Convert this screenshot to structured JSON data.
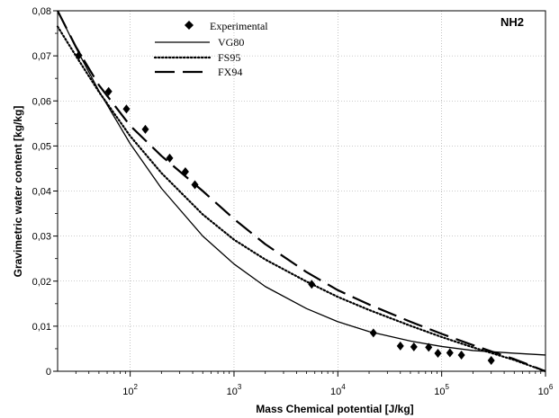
{
  "chart_data": {
    "type": "scatter",
    "panel_label": "NH2",
    "xlabel": "Mass Chemical potential [J/kg]",
    "ylabel": "Gravimetric water content [kg/kg]",
    "xscale": "log",
    "xlim": [
      20,
      1000000
    ],
    "ylim": [
      0,
      0.08
    ],
    "x_ticks": [
      {
        "value": 100,
        "base": "10",
        "exp": "2"
      },
      {
        "value": 1000,
        "base": "10",
        "exp": "3"
      },
      {
        "value": 10000,
        "base": "10",
        "exp": "4"
      },
      {
        "value": 100000,
        "base": "10",
        "exp": "5"
      },
      {
        "value": 1000000,
        "base": "10",
        "exp": "6"
      }
    ],
    "y_ticks": [
      {
        "value": 0,
        "label": "0"
      },
      {
        "value": 0.01,
        "label": "0,01"
      },
      {
        "value": 0.02,
        "label": "0,02"
      },
      {
        "value": 0.03,
        "label": "0,03"
      },
      {
        "value": 0.04,
        "label": "0,04"
      },
      {
        "value": 0.05,
        "label": "0,05"
      },
      {
        "value": 0.06,
        "label": "0,06"
      },
      {
        "value": 0.07,
        "label": "0,07"
      },
      {
        "value": 0.08,
        "label": "0,08"
      }
    ],
    "legend_position": "top-center",
    "series": [
      {
        "name": "Experimental",
        "style": "diamond-markers",
        "x": [
          32,
          62,
          92,
          140,
          240,
          340,
          420,
          5600,
          22000,
          40000,
          54000,
          75000,
          92000,
          120000,
          155000,
          300000
        ],
        "y": [
          0.0701,
          0.0621,
          0.0582,
          0.0537,
          0.0473,
          0.0443,
          0.0414,
          0.0193,
          0.0085,
          0.0056,
          0.0054,
          0.0053,
          0.004,
          0.0041,
          0.0036,
          0.0024
        ]
      },
      {
        "name": "VG80",
        "style": "solid",
        "x": [
          20,
          30,
          50,
          100,
          200,
          500,
          1000,
          2000,
          5000,
          10000,
          20000,
          50000,
          100000,
          200000,
          500000,
          1000000
        ],
        "y": [
          0.08,
          0.0718,
          0.0622,
          0.0505,
          0.0406,
          0.03,
          0.0238,
          0.0188,
          0.0139,
          0.011,
          0.0088,
          0.0067,
          0.0055,
          0.0046,
          0.004,
          0.0036
        ]
      },
      {
        "name": "FS95",
        "style": "dotted",
        "x": [
          20,
          30,
          50,
          100,
          200,
          500,
          1000,
          2000,
          5000,
          10000,
          20000,
          50000,
          100000,
          200000,
          500000,
          1000000
        ],
        "y": [
          0.0765,
          0.07,
          0.062,
          0.0522,
          0.044,
          0.0348,
          0.0292,
          0.0248,
          0.0199,
          0.0165,
          0.0136,
          0.0101,
          0.0076,
          0.0053,
          0.0025,
          0.0
        ]
      },
      {
        "name": "FX94",
        "style": "long-dash",
        "x": [
          20,
          30,
          50,
          100,
          200,
          500,
          1000,
          2000,
          5000,
          10000,
          20000,
          50000,
          100000,
          200000,
          500000,
          1000000
        ],
        "y": [
          0.08,
          0.072,
          0.0635,
          0.0545,
          0.0478,
          0.04,
          0.0338,
          0.0282,
          0.022,
          0.018,
          0.0148,
          0.011,
          0.0083,
          0.0058,
          0.0027,
          0.0
        ]
      }
    ]
  }
}
